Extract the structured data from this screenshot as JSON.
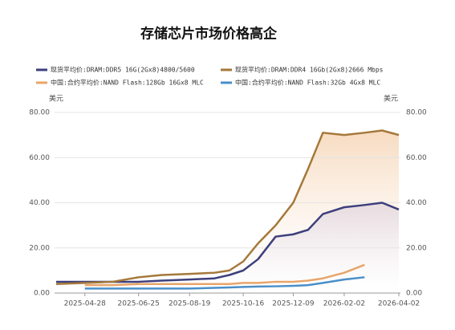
{
  "chart_data": {
    "type": "line",
    "title": "存储芯片市场价格高企",
    "y_label": "美元",
    "y2_label": "美元",
    "x": [
      "2025-03-28",
      "2025-04-28",
      "2025-05-28",
      "2025-06-25",
      "2025-07-20",
      "2025-08-19",
      "2025-09-15",
      "2025-10-01",
      "2025-10-16",
      "2025-11-01",
      "2025-11-20",
      "2025-12-09",
      "2025-12-25",
      "2026-01-10",
      "2026-02-02",
      "2026-02-24",
      "2026-03-15",
      "2026-04-02"
    ],
    "xlim": [
      "2025-03-28",
      "2026-04-02"
    ],
    "xticks": [
      "2025-04-28",
      "2025-06-25",
      "2025-08-19",
      "2025-10-16",
      "2025-12-09",
      "2026-02-02",
      "2026-04-02"
    ],
    "series": [
      {
        "name": "现货平均价:DRAM:DDR5 16G(2Gx8)4800/5600",
        "color": "#3d3f7c",
        "area": true,
        "values": [
          5,
          5,
          5,
          5,
          5.5,
          6,
          6.5,
          8,
          10,
          15,
          25,
          26,
          28,
          35,
          38,
          39,
          40,
          37
        ]
      },
      {
        "name": "现货平均价:DRAM:DDR4 16Gb(2Gx8)2666 Mbps",
        "color": "#a5783a",
        "area": true,
        "values": [
          4,
          4.5,
          5,
          7,
          8,
          8.5,
          9,
          10,
          14,
          22,
          30,
          40,
          55,
          71,
          70,
          71,
          72,
          70
        ]
      },
      {
        "name": "中国:合约平均价:NAND Flash:128Gb 16Gx8 MLC",
        "color": "#e8a56a",
        "area": false,
        "values": [
          null,
          3.5,
          3.5,
          4,
          4,
          4,
          4,
          4,
          4.5,
          4.5,
          5,
          5,
          5.5,
          6.5,
          9,
          12.5,
          null,
          null
        ]
      },
      {
        "name": "中国:合约平均价:NAND Flash:32Gb 4Gx8 MLC",
        "color": "#4a8fc9",
        "area": false,
        "values": [
          null,
          2,
          2,
          2,
          2,
          2,
          2.3,
          2.5,
          2.7,
          2.9,
          3,
          3.2,
          3.5,
          4.5,
          6,
          7,
          null,
          null
        ]
      }
    ],
    "ylim": [
      0,
      80
    ],
    "yticks": [
      {
        "value": 0,
        "label": "0.00"
      },
      {
        "value": 20,
        "label": "20.00"
      },
      {
        "value": 40,
        "label": "40.00"
      },
      {
        "value": 60,
        "label": "60.00"
      },
      {
        "value": 80,
        "label": "80.00"
      }
    ],
    "y2lim": [
      0,
      80
    ],
    "y2ticks": [
      {
        "value": 0,
        "label": "0.00"
      },
      {
        "value": 20,
        "label": "20.00"
      },
      {
        "value": 40,
        "label": "40.00"
      },
      {
        "value": 60,
        "label": "60.00"
      },
      {
        "value": 80,
        "label": "80.00"
      }
    ],
    "grid": true
  }
}
